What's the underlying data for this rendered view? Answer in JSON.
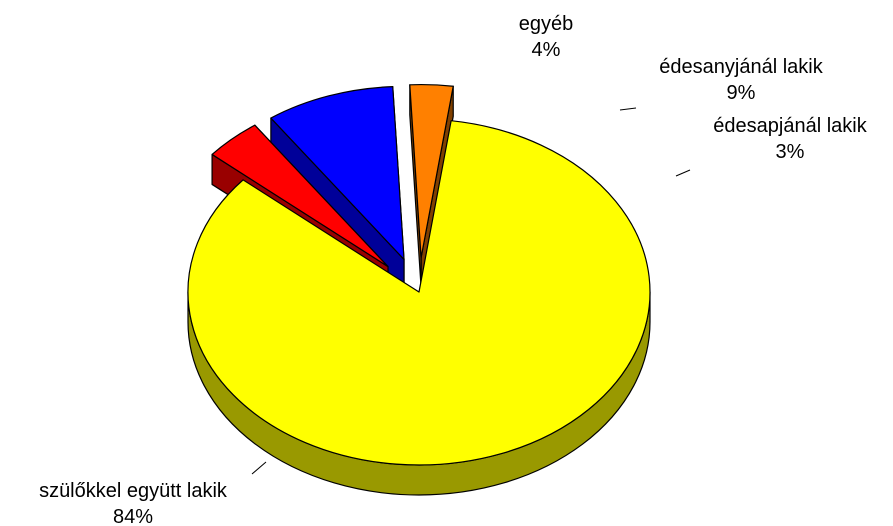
{
  "chart_data": {
    "type": "pie",
    "title": "",
    "three_d": true,
    "exploded": true,
    "slices": [
      {
        "name": "szülőkkel együtt lakik",
        "value": 84,
        "value_label": "84%",
        "color": "#ffff00",
        "side_color": "#999900"
      },
      {
        "name": "egyéb",
        "value": 4,
        "value_label": "4%",
        "color": "#ff0000",
        "side_color": "#990000"
      },
      {
        "name": "édesanyjánál lakik",
        "value": 9,
        "value_label": "9%",
        "color": "#0000ff",
        "side_color": "#000099"
      },
      {
        "name": "édesapjánál lakik",
        "value": 3,
        "value_label": "3%",
        "color": "#ff8000",
        "side_color": "#804000"
      }
    ]
  }
}
